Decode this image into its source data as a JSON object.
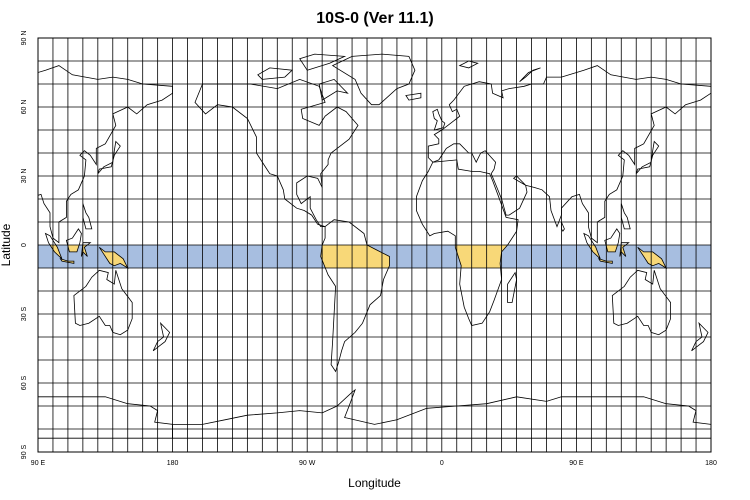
{
  "title": "10S-0 (Ver 11.1)",
  "xlabel": "Longitude",
  "ylabel": "Latitude",
  "x_ticks": [
    {
      "lon": 90,
      "label": "90 E"
    },
    {
      "lon": 180,
      "label": "180"
    },
    {
      "lon": 270,
      "label": "90 W"
    },
    {
      "lon": 360,
      "label": "0"
    },
    {
      "lon": 450,
      "label": "90 E"
    },
    {
      "lon": 540,
      "label": "180"
    }
  ],
  "y_ticks": [
    {
      "lat": 90,
      "label": "90 N"
    },
    {
      "lat": 60,
      "label": "60 N"
    },
    {
      "lat": 30,
      "label": "30 N"
    },
    {
      "lat": 0,
      "label": "0"
    },
    {
      "lat": -30,
      "label": "30 S"
    },
    {
      "lat": -60,
      "label": "60 S"
    },
    {
      "lat": -90,
      "label": "90 S"
    }
  ],
  "map": {
    "lon_range": [
      90,
      540
    ],
    "lat_range": [
      -90,
      90
    ],
    "grid_spacing_lon_deg": 10,
    "grid_spacing_lat_deg": 10,
    "band": {
      "lat_min": -10,
      "lat_max": 0,
      "ocean_color": "#a7bee0",
      "land_color": "#f8d878"
    },
    "grid_color": "#000000",
    "coast_color": "#000000"
  }
}
